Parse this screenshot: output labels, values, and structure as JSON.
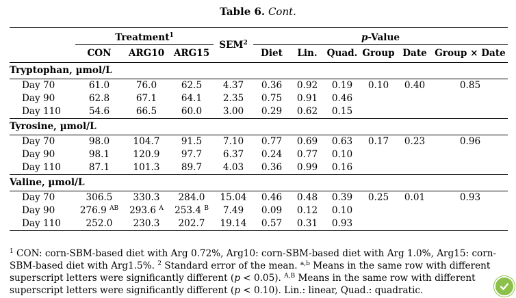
{
  "title": {
    "label": "Table 6.",
    "suffix": "Cont."
  },
  "header": {
    "treatment": "Treatment",
    "treatment_sup": "1",
    "sem": "SEM",
    "sem_sup": "2",
    "pvalue_prefix": "p",
    "pvalue_rest": "-Value",
    "treatments": [
      "CON",
      "ARG10",
      "ARG15"
    ],
    "pcols": [
      "Diet",
      "Lin.",
      "Quad.",
      "Group",
      "Date",
      "Group × Date"
    ]
  },
  "sections": [
    {
      "name": "Tryptophan, µmol/L",
      "rows": [
        {
          "day": "Day 70",
          "con": "61.0",
          "con_sup": "",
          "arg10": "76.0",
          "arg10_sup": "",
          "arg15": "62.5",
          "arg15_sup": "",
          "sem": "4.37",
          "diet": "0.36",
          "lin": "0.92",
          "quad": "0.19",
          "group": "0.10",
          "date": "0.40",
          "gxd": "0.85"
        },
        {
          "day": "Day 90",
          "con": "62.8",
          "con_sup": "",
          "arg10": "67.1",
          "arg10_sup": "",
          "arg15": "64.1",
          "arg15_sup": "",
          "sem": "2.35",
          "diet": "0.75",
          "lin": "0.91",
          "quad": "0.46",
          "group": "",
          "date": "",
          "gxd": ""
        },
        {
          "day": "Day 110",
          "con": "54.6",
          "con_sup": "",
          "arg10": "66.5",
          "arg10_sup": "",
          "arg15": "60.0",
          "arg15_sup": "",
          "sem": "3.00",
          "diet": "0.29",
          "lin": "0.62",
          "quad": "0.15",
          "group": "",
          "date": "",
          "gxd": ""
        }
      ]
    },
    {
      "name": "Tyrosine, µmol/L",
      "rows": [
        {
          "day": "Day 70",
          "con": "98.0",
          "con_sup": "",
          "arg10": "104.7",
          "arg10_sup": "",
          "arg15": "91.5",
          "arg15_sup": "",
          "sem": "7.10",
          "diet": "0.77",
          "lin": "0.69",
          "quad": "0.63",
          "group": "0.17",
          "date": "0.23",
          "gxd": "0.96"
        },
        {
          "day": "Day 90",
          "con": "98.1",
          "con_sup": "",
          "arg10": "120.9",
          "arg10_sup": "",
          "arg15": "97.7",
          "arg15_sup": "",
          "sem": "6.37",
          "diet": "0.24",
          "lin": "0.77",
          "quad": "0.10",
          "group": "",
          "date": "",
          "gxd": ""
        },
        {
          "day": "Day 110",
          "con": "87.1",
          "con_sup": "",
          "arg10": "101.3",
          "arg10_sup": "",
          "arg15": "89.7",
          "arg15_sup": "",
          "sem": "4.03",
          "diet": "0.36",
          "lin": "0.99",
          "quad": "0.16",
          "group": "",
          "date": "",
          "gxd": ""
        }
      ]
    },
    {
      "name": "Valine, µmol/L",
      "rows": [
        {
          "day": "Day 70",
          "con": "306.5",
          "con_sup": "",
          "arg10": "330.3",
          "arg10_sup": "",
          "arg15": "284.0",
          "arg15_sup": "",
          "sem": "15.04",
          "diet": "0.46",
          "lin": "0.48",
          "quad": "0.39",
          "group": "0.25",
          "date": "0.01",
          "gxd": "0.93"
        },
        {
          "day": "Day 90",
          "con": "276.9",
          "con_sup": "AB",
          "arg10": "293.6",
          "arg10_sup": "A",
          "arg15": "253.4",
          "arg15_sup": "B",
          "sem": "7.49",
          "diet": "0.09",
          "lin": "0.12",
          "quad": "0.10",
          "group": "",
          "date": "",
          "gxd": ""
        },
        {
          "day": "Day 110",
          "con": "252.0",
          "con_sup": "",
          "arg10": "230.3",
          "arg10_sup": "",
          "arg15": "202.7",
          "arg15_sup": "",
          "sem": "19.14",
          "diet": "0.57",
          "lin": "0.31",
          "quad": "0.93",
          "group": "",
          "date": "",
          "gxd": ""
        }
      ]
    }
  ],
  "footnote": {
    "s1": "1",
    "t1": " CON: corn-SBM-based diet with Arg 0.72%, Arg10: corn-SBM-based diet with Arg 1.0%, Arg15: corn-SBM-based diet with Arg1.5%. ",
    "s2": "2",
    "t2": " Standard error of the mean. ",
    "s3": "a,b",
    "t3": " Means in the same row with different superscript letters were significantly different (",
    "p1": "p",
    "t4": " < 0.05). ",
    "s4": "A,B",
    "t5": " Means in the same row with different superscript letters were significantly different (",
    "p2": "p",
    "t6": " < 0.10). Lin.: linear, Quad.: quadratic."
  },
  "badge": {
    "icon": "check-circle-icon",
    "color": "#8cc04a"
  }
}
